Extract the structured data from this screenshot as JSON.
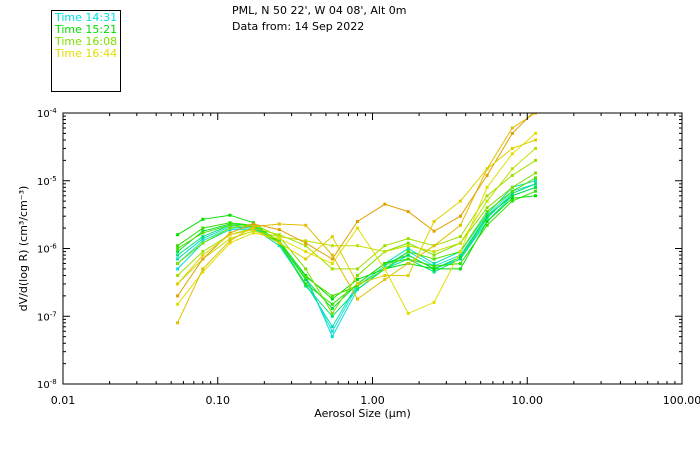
{
  "header": {
    "location": "PML, N 50 22', W 04 08', Alt 0m",
    "date": "Data from: 14 Sep 2022"
  },
  "chart_data": {
    "type": "line",
    "xlabel": "Aerosol Size (μm)",
    "ylabel": "dV/d(log R) (cm³/cm⁻³)",
    "x_scale": "log",
    "y_scale": "log",
    "xlim": [
      0.01,
      100
    ],
    "ylim": [
      1e-08,
      0.0001
    ],
    "x_ticks": [
      {
        "value": 0.01,
        "label": "0.01"
      },
      {
        "value": 0.1,
        "label": "0.10"
      },
      {
        "value": 1,
        "label": "1.00"
      },
      {
        "value": 10,
        "label": "10.00"
      },
      {
        "value": 100,
        "label": "100.00"
      }
    ],
    "y_ticks": [
      {
        "value": 1e-08,
        "base": "10",
        "exp": "-8"
      },
      {
        "value": 1e-07,
        "base": "10",
        "exp": "-7"
      },
      {
        "value": 1e-06,
        "base": "10",
        "exp": "-6"
      },
      {
        "value": 1e-05,
        "base": "10",
        "exp": "-5"
      },
      {
        "value": 0.0001,
        "base": "10",
        "exp": "-4"
      }
    ],
    "grid": false,
    "legend_position": "top-left",
    "legend": [
      {
        "label": "Time 14:31",
        "color": "#00e0e0"
      },
      {
        "label": "Time 15:21",
        "color": "#00e000"
      },
      {
        "label": "Time 16:08",
        "color": "#80e000"
      },
      {
        "label": "Time 16:44",
        "color": "#e0e000"
      }
    ],
    "x": [
      0.055,
      0.08,
      0.12,
      0.17,
      0.25,
      0.37,
      0.55,
      0.8,
      1.2,
      1.7,
      2.5,
      3.7,
      5.5,
      8,
      11.3
    ],
    "series": [
      {
        "color": "#00e0e0",
        "values": [
          5e-07,
          1.2e-06,
          1.9e-06,
          1.9e-06,
          1.3e-06,
          4e-07,
          5e-08,
          2.5e-07,
          5e-07,
          8e-07,
          5e-07,
          7e-07,
          2.5e-06,
          6e-06,
          8e-06
        ]
      },
      {
        "color": "#20e0d0",
        "values": [
          6e-07,
          1.3e-06,
          2e-06,
          2e-06,
          1.2e-06,
          3.5e-07,
          6e-08,
          2.8e-07,
          5.5e-07,
          9e-07,
          5.5e-07,
          8e-07,
          3e-06,
          7e-06,
          9e-06
        ]
      },
      {
        "color": "#00e0b0",
        "values": [
          7e-07,
          1.4e-06,
          2.1e-06,
          2e-06,
          1.1e-06,
          3e-07,
          7e-08,
          3e-07,
          6e-07,
          1e-06,
          6e-07,
          9e-07,
          3.2e-06,
          8e-06,
          1e-05
        ]
      },
      {
        "color": "#00e080",
        "values": [
          8e-07,
          1.5e-06,
          2.2e-06,
          2.1e-06,
          1.2e-06,
          2.8e-07,
          1e-07,
          2.5e-07,
          5e-07,
          7e-07,
          4.5e-07,
          7e-07,
          2.8e-06,
          6.5e-06,
          9e-06
        ]
      },
      {
        "color": "#00e040",
        "values": [
          9e-07,
          1.8e-06,
          2.3e-06,
          2.2e-06,
          1.3e-06,
          3.5e-07,
          1.3e-07,
          3e-07,
          6e-07,
          8e-07,
          5e-07,
          7.5e-07,
          3e-06,
          6e-06,
          8e-06
        ]
      },
      {
        "color": "#00e000",
        "values": [
          1.6e-06,
          2.7e-06,
          3.1e-06,
          2.4e-06,
          1.2e-06,
          4e-07,
          1.8e-07,
          3.5e-07,
          5e-07,
          6e-07,
          5e-07,
          5e-07,
          2.5e-06,
          5.5e-06,
          6e-06
        ]
      },
      {
        "color": "#30e000",
        "values": [
          1.1e-06,
          2e-06,
          2.4e-06,
          2.2e-06,
          1.2e-06,
          3e-07,
          1.5e-07,
          3e-07,
          6e-07,
          7e-07,
          5.5e-07,
          6e-07,
          2.2e-06,
          5e-06,
          7e-06
        ]
      },
      {
        "color": "#50e000",
        "values": [
          1e-06,
          1.7e-06,
          2.2e-06,
          2.1e-06,
          1.3e-06,
          3.8e-07,
          2e-07,
          2.8e-07,
          5e-07,
          9e-07,
          7e-07,
          9e-07,
          3.5e-06,
          7e-06,
          1.1e-05
        ]
      },
      {
        "color": "#80e000",
        "values": [
          6e-07,
          1.2e-06,
          2e-06,
          2.3e-06,
          1.5e-06,
          5e-07,
          1.1e-07,
          4e-07,
          9e-07,
          1.2e-06,
          8e-07,
          1.2e-06,
          4e-06,
          8e-06,
          1.3e-05
        ]
      },
      {
        "color": "#a0e000",
        "values": [
          4e-07,
          9e-07,
          1.6e-06,
          2e-06,
          1.6e-06,
          1.1e-06,
          5e-07,
          5e-07,
          1.1e-06,
          1.4e-06,
          1.1e-06,
          1.5e-06,
          6e-06,
          1.2e-05,
          2e-05
        ]
      },
      {
        "color": "#c0e000",
        "values": [
          3e-07,
          7e-07,
          1.4e-06,
          1.8e-06,
          1.5e-06,
          1.3e-06,
          1.1e-06,
          1.1e-06,
          9e-07,
          1.1e-06,
          9e-07,
          1.2e-06,
          5e-06,
          1.5e-05,
          3e-05
        ]
      },
      {
        "color": "#e0e000",
        "values": [
          1.5e-07,
          4.5e-07,
          1.2e-06,
          1.7e-06,
          1.4e-06,
          9e-07,
          6e-07,
          2e-06,
          5e-07,
          1.1e-07,
          1.6e-07,
          9e-07,
          8e-06,
          2.5e-05,
          5e-05
        ]
      },
      {
        "color": "#e0c000",
        "values": [
          8e-08,
          5e-07,
          1.3e-06,
          2.1e-06,
          2.3e-06,
          2.2e-06,
          8e-07,
          1.8e-07,
          3.5e-07,
          6e-07,
          1.1e-06,
          2.2e-06,
          1.5e-05,
          6e-05,
          0.0001
        ]
      },
      {
        "color": "#e0a000",
        "values": [
          2e-07,
          7e-07,
          1.7e-06,
          2.3e-06,
          1.9e-06,
          1.2e-06,
          7e-07,
          2.5e-06,
          4.5e-06,
          3.5e-06,
          1.8e-06,
          3e-06,
          1.2e-05,
          5e-05,
          0.00011
        ]
      },
      {
        "color": "#e0d000",
        "values": [
          3e-07,
          8e-07,
          1.6e-06,
          1.9e-06,
          1.2e-06,
          7e-07,
          1.5e-06,
          3e-07,
          4e-07,
          4e-07,
          2.5e-06,
          5e-06,
          1.5e-05,
          3e-05,
          4e-05
        ]
      }
    ]
  }
}
